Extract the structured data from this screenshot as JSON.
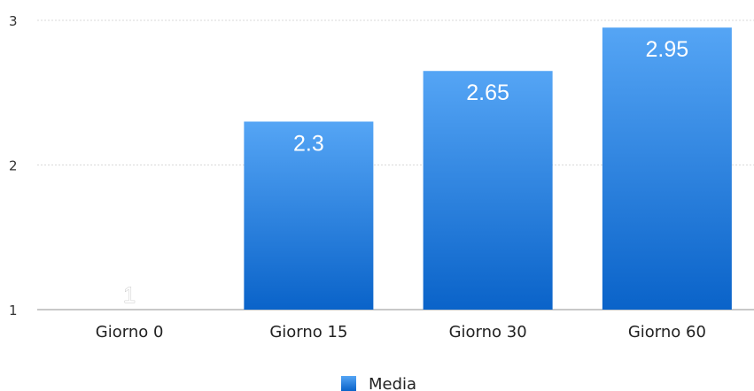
{
  "chart_data": {
    "type": "bar",
    "categories": [
      "Giorno 0",
      "Giorno 15",
      "Giorno 30",
      "Giorno 60"
    ],
    "series": [
      {
        "name": "Media",
        "values": [
          1,
          2.3,
          2.65,
          2.95
        ]
      }
    ],
    "data_labels": [
      "1",
      "2.3",
      "2.65",
      "2.95"
    ],
    "y_ticks": [
      1,
      2,
      3
    ],
    "y_tick_labels": [
      "1",
      "2",
      "3"
    ],
    "ylim": [
      1,
      3
    ],
    "grid": true,
    "legend_position": "bottom-center",
    "title": "",
    "xlabel": "",
    "ylabel": "",
    "colors": {
      "bar_top": "#55a5f5",
      "bar_bottom": "#0a63c9",
      "legend": "#2f86e6"
    }
  }
}
